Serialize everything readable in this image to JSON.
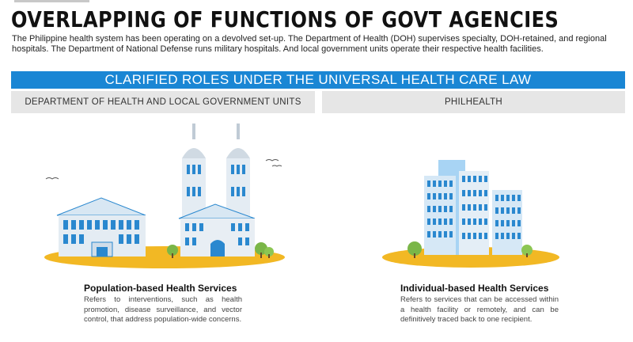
{
  "header": {
    "title": "OVERLAPPING OF FUNCTIONS OF GOVT AGENCIES",
    "intro": "The Philippine health system has been operating on a devolved set-up. The Department of Health (DOH) supervises specialty, DOH-retained, and regional hospitals. The Department of National Defense runs military hospitals. And local government units operate their respective health facilities."
  },
  "banner": {
    "label": "CLARIFIED ROLES UNDER THE UNIVERSAL HEALTH CARE LAW"
  },
  "columns": [
    {
      "heading": "DEPARTMENT OF HEALTH AND LOCAL GOVERNMENT UNITS",
      "service_title": "Population-based Health Services",
      "service_desc": "Refers to interventions, such as health promotion, disease surveillance, and vector control, that address population-wide concerns.",
      "illustration_icon": "hospital-cathedral-icon"
    },
    {
      "heading": "PHILHEALTH",
      "service_title": "Individual-based Health Services",
      "service_desc": "Refers to services that can be accessed within a health facility or remotely, and can be definitively traced back to one recipient.",
      "illustration_icon": "office-tower-icon"
    }
  ],
  "colors": {
    "accent": "#1a86d4",
    "ground": "#f2b824",
    "header_gray": "#e6e6e6"
  }
}
